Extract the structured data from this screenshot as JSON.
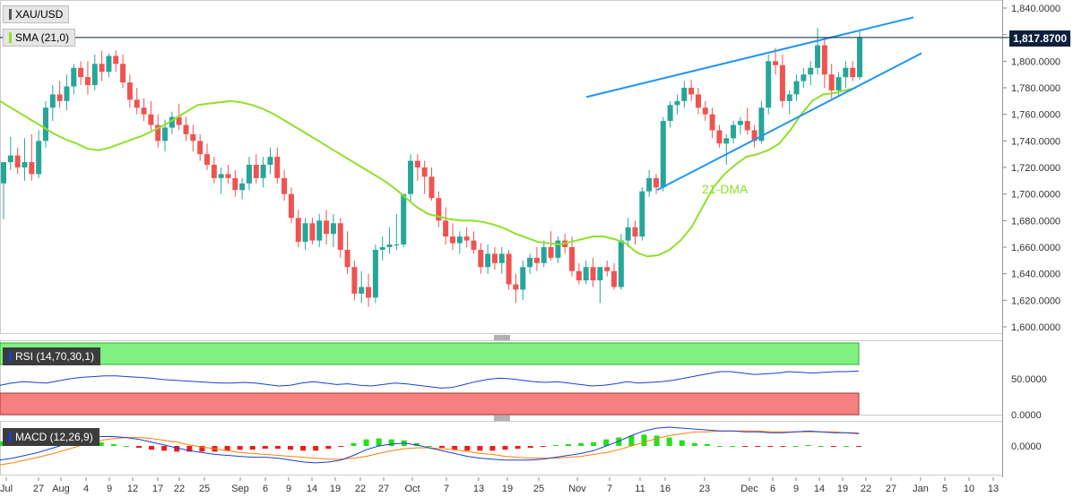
{
  "panel_labels": {
    "symbol": "XAU/USD",
    "sma": "SMA (21,0)",
    "rsi": "RSI (14,70,30,1)",
    "macd": "MACD (12,26,9)",
    "annotation": "21-DMA",
    "last_price": "1,817.8700"
  },
  "colors": {
    "bull": "#26a69a",
    "bear": "#ef5350",
    "sma": "#8fe12a",
    "trend": "#2196f3",
    "rsi_line": "#1a3fd4",
    "macd_line": "#1a3fd4",
    "signal_line": "#ff7f00",
    "hist_pos": "#22e01d",
    "hist_neg": "#ef1b1b",
    "rsi_upper_band": "#80f080",
    "rsi_lower_band": "#f58080"
  },
  "x_axis_ticks": [
    "Jul",
    "27",
    "Aug",
    "4",
    "9",
    "12",
    "17",
    "22",
    "25",
    "Sep",
    "6",
    "9",
    "14",
    "19",
    "22",
    "27",
    "Oct",
    "7",
    "13",
    "19",
    "25",
    "Nov",
    "7",
    "11",
    "16",
    "23",
    "Dec",
    "6",
    "9",
    "14",
    "19",
    "22",
    "27",
    "Jan",
    "5",
    "10",
    "13"
  ],
  "chart_data": [
    {
      "type": "candlestick",
      "ylim": [
        1590,
        1845
      ],
      "yticks": [
        "1,600.0000",
        "1,620.0000",
        "1,640.0000",
        "1,660.0000",
        "1,680.0000",
        "1,700.0000",
        "1,720.0000",
        "1,740.0000",
        "1,760.0000",
        "1,780.0000",
        "1,800.0000",
        "1,820.0000",
        "1,840.0000"
      ],
      "last_price": 1817.87,
      "candles": [
        {
          "o": 1708,
          "h": 1722,
          "l": 1681,
          "c": 1724
        },
        {
          "o": 1724,
          "h": 1743,
          "l": 1718,
          "c": 1729
        },
        {
          "o": 1729,
          "h": 1735,
          "l": 1715,
          "c": 1720
        },
        {
          "o": 1720,
          "h": 1742,
          "l": 1710,
          "c": 1724
        },
        {
          "o": 1724,
          "h": 1745,
          "l": 1710,
          "c": 1715
        },
        {
          "o": 1715,
          "h": 1748,
          "l": 1712,
          "c": 1740
        },
        {
          "o": 1740,
          "h": 1770,
          "l": 1735,
          "c": 1765
        },
        {
          "o": 1765,
          "h": 1782,
          "l": 1755,
          "c": 1775
        },
        {
          "o": 1775,
          "h": 1785,
          "l": 1765,
          "c": 1770
        },
        {
          "o": 1770,
          "h": 1790,
          "l": 1763,
          "c": 1781
        },
        {
          "o": 1781,
          "h": 1798,
          "l": 1775,
          "c": 1795
        },
        {
          "o": 1795,
          "h": 1800,
          "l": 1782,
          "c": 1788
        },
        {
          "o": 1788,
          "h": 1800,
          "l": 1775,
          "c": 1782
        },
        {
          "o": 1782,
          "h": 1805,
          "l": 1778,
          "c": 1798
        },
        {
          "o": 1798,
          "h": 1808,
          "l": 1785,
          "c": 1792
        },
        {
          "o": 1792,
          "h": 1806,
          "l": 1788,
          "c": 1804
        },
        {
          "o": 1804,
          "h": 1808,
          "l": 1792,
          "c": 1798
        },
        {
          "o": 1798,
          "h": 1805,
          "l": 1780,
          "c": 1784
        },
        {
          "o": 1784,
          "h": 1790,
          "l": 1765,
          "c": 1771
        },
        {
          "o": 1771,
          "h": 1780,
          "l": 1760,
          "c": 1765
        },
        {
          "o": 1765,
          "h": 1772,
          "l": 1755,
          "c": 1760
        },
        {
          "o": 1760,
          "h": 1770,
          "l": 1748,
          "c": 1752
        },
        {
          "o": 1752,
          "h": 1760,
          "l": 1735,
          "c": 1740
        },
        {
          "o": 1740,
          "h": 1756,
          "l": 1732,
          "c": 1750
        },
        {
          "o": 1750,
          "h": 1762,
          "l": 1745,
          "c": 1758
        },
        {
          "o": 1758,
          "h": 1768,
          "l": 1748,
          "c": 1752
        },
        {
          "o": 1752,
          "h": 1758,
          "l": 1740,
          "c": 1745
        },
        {
          "o": 1745,
          "h": 1752,
          "l": 1732,
          "c": 1740
        },
        {
          "o": 1740,
          "h": 1745,
          "l": 1725,
          "c": 1730
        },
        {
          "o": 1730,
          "h": 1738,
          "l": 1718,
          "c": 1722
        },
        {
          "o": 1722,
          "h": 1728,
          "l": 1708,
          "c": 1712
        },
        {
          "o": 1712,
          "h": 1720,
          "l": 1700,
          "c": 1715
        },
        {
          "o": 1715,
          "h": 1722,
          "l": 1708,
          "c": 1712
        },
        {
          "o": 1712,
          "h": 1718,
          "l": 1698,
          "c": 1703
        },
        {
          "o": 1703,
          "h": 1712,
          "l": 1696,
          "c": 1708
        },
        {
          "o": 1708,
          "h": 1728,
          "l": 1703,
          "c": 1722
        },
        {
          "o": 1722,
          "h": 1730,
          "l": 1708,
          "c": 1712
        },
        {
          "o": 1712,
          "h": 1728,
          "l": 1705,
          "c": 1722
        },
        {
          "o": 1722,
          "h": 1735,
          "l": 1715,
          "c": 1728
        },
        {
          "o": 1728,
          "h": 1735,
          "l": 1708,
          "c": 1712
        },
        {
          "o": 1712,
          "h": 1718,
          "l": 1695,
          "c": 1700
        },
        {
          "o": 1700,
          "h": 1705,
          "l": 1678,
          "c": 1682
        },
        {
          "o": 1682,
          "h": 1688,
          "l": 1660,
          "c": 1664
        },
        {
          "o": 1664,
          "h": 1682,
          "l": 1658,
          "c": 1678
        },
        {
          "o": 1678,
          "h": 1682,
          "l": 1662,
          "c": 1665
        },
        {
          "o": 1665,
          "h": 1685,
          "l": 1660,
          "c": 1680
        },
        {
          "o": 1680,
          "h": 1688,
          "l": 1662,
          "c": 1670
        },
        {
          "o": 1670,
          "h": 1685,
          "l": 1660,
          "c": 1678
        },
        {
          "o": 1678,
          "h": 1682,
          "l": 1652,
          "c": 1658
        },
        {
          "o": 1658,
          "h": 1672,
          "l": 1640,
          "c": 1645
        },
        {
          "o": 1645,
          "h": 1650,
          "l": 1620,
          "c": 1625
        },
        {
          "o": 1625,
          "h": 1642,
          "l": 1618,
          "c": 1630
        },
        {
          "o": 1630,
          "h": 1640,
          "l": 1615,
          "c": 1622
        },
        {
          "o": 1622,
          "h": 1662,
          "l": 1618,
          "c": 1658
        },
        {
          "o": 1658,
          "h": 1668,
          "l": 1650,
          "c": 1660
        },
        {
          "o": 1660,
          "h": 1675,
          "l": 1655,
          "c": 1662
        },
        {
          "o": 1662,
          "h": 1685,
          "l": 1658,
          "c": 1662
        },
        {
          "o": 1662,
          "h": 1700,
          "l": 1660,
          "c": 1700
        },
        {
          "o": 1700,
          "h": 1730,
          "l": 1695,
          "c": 1725
        },
        {
          "o": 1725,
          "h": 1730,
          "l": 1710,
          "c": 1720
        },
        {
          "o": 1720,
          "h": 1725,
          "l": 1700,
          "c": 1713
        },
        {
          "o": 1713,
          "h": 1720,
          "l": 1695,
          "c": 1697
        },
        {
          "o": 1697,
          "h": 1702,
          "l": 1675,
          "c": 1680
        },
        {
          "o": 1680,
          "h": 1690,
          "l": 1662,
          "c": 1668
        },
        {
          "o": 1668,
          "h": 1678,
          "l": 1658,
          "c": 1663
        },
        {
          "o": 1663,
          "h": 1672,
          "l": 1655,
          "c": 1668
        },
        {
          "o": 1668,
          "h": 1675,
          "l": 1660,
          "c": 1665
        },
        {
          "o": 1665,
          "h": 1672,
          "l": 1655,
          "c": 1658
        },
        {
          "o": 1658,
          "h": 1663,
          "l": 1640,
          "c": 1645
        },
        {
          "o": 1645,
          "h": 1662,
          "l": 1640,
          "c": 1655
        },
        {
          "o": 1655,
          "h": 1660,
          "l": 1643,
          "c": 1648
        },
        {
          "o": 1648,
          "h": 1660,
          "l": 1640,
          "c": 1655
        },
        {
          "o": 1655,
          "h": 1658,
          "l": 1628,
          "c": 1632
        },
        {
          "o": 1632,
          "h": 1640,
          "l": 1618,
          "c": 1628
        },
        {
          "o": 1628,
          "h": 1650,
          "l": 1620,
          "c": 1645
        },
        {
          "o": 1645,
          "h": 1655,
          "l": 1640,
          "c": 1652
        },
        {
          "o": 1652,
          "h": 1660,
          "l": 1642,
          "c": 1648
        },
        {
          "o": 1648,
          "h": 1665,
          "l": 1645,
          "c": 1660
        },
        {
          "o": 1660,
          "h": 1672,
          "l": 1650,
          "c": 1652
        },
        {
          "o": 1652,
          "h": 1668,
          "l": 1648,
          "c": 1665
        },
        {
          "o": 1665,
          "h": 1670,
          "l": 1655,
          "c": 1660
        },
        {
          "o": 1660,
          "h": 1668,
          "l": 1638,
          "c": 1642
        },
        {
          "o": 1642,
          "h": 1648,
          "l": 1632,
          "c": 1635
        },
        {
          "o": 1635,
          "h": 1650,
          "l": 1632,
          "c": 1645
        },
        {
          "o": 1645,
          "h": 1652,
          "l": 1630,
          "c": 1635
        },
        {
          "o": 1635,
          "h": 1645,
          "l": 1618,
          "c": 1645
        },
        {
          "o": 1645,
          "h": 1650,
          "l": 1638,
          "c": 1642
        },
        {
          "o": 1642,
          "h": 1648,
          "l": 1628,
          "c": 1630
        },
        {
          "o": 1630,
          "h": 1670,
          "l": 1628,
          "c": 1665
        },
        {
          "o": 1665,
          "h": 1682,
          "l": 1660,
          "c": 1675
        },
        {
          "o": 1675,
          "h": 1680,
          "l": 1662,
          "c": 1668
        },
        {
          "o": 1668,
          "h": 1705,
          "l": 1665,
          "c": 1702
        },
        {
          "o": 1702,
          "h": 1718,
          "l": 1698,
          "c": 1712
        },
        {
          "o": 1712,
          "h": 1715,
          "l": 1700,
          "c": 1705
        },
        {
          "o": 1705,
          "h": 1758,
          "l": 1702,
          "c": 1755
        },
        {
          "o": 1755,
          "h": 1770,
          "l": 1750,
          "c": 1767
        },
        {
          "o": 1767,
          "h": 1775,
          "l": 1760,
          "c": 1770
        },
        {
          "o": 1770,
          "h": 1785,
          "l": 1765,
          "c": 1780
        },
        {
          "o": 1780,
          "h": 1786,
          "l": 1770,
          "c": 1775
        },
        {
          "o": 1775,
          "h": 1780,
          "l": 1760,
          "c": 1765
        },
        {
          "o": 1765,
          "h": 1770,
          "l": 1755,
          "c": 1760
        },
        {
          "o": 1760,
          "h": 1765,
          "l": 1742,
          "c": 1748
        },
        {
          "o": 1748,
          "h": 1752,
          "l": 1735,
          "c": 1738
        },
        {
          "o": 1738,
          "h": 1745,
          "l": 1722,
          "c": 1742
        },
        {
          "o": 1742,
          "h": 1755,
          "l": 1738,
          "c": 1752
        },
        {
          "o": 1752,
          "h": 1758,
          "l": 1745,
          "c": 1755
        },
        {
          "o": 1755,
          "h": 1765,
          "l": 1745,
          "c": 1748
        },
        {
          "o": 1748,
          "h": 1752,
          "l": 1735,
          "c": 1740
        },
        {
          "o": 1740,
          "h": 1770,
          "l": 1738,
          "c": 1765
        },
        {
          "o": 1765,
          "h": 1805,
          "l": 1760,
          "c": 1800
        },
        {
          "o": 1800,
          "h": 1810,
          "l": 1790,
          "c": 1797
        },
        {
          "o": 1797,
          "h": 1805,
          "l": 1765,
          "c": 1770
        },
        {
          "o": 1770,
          "h": 1778,
          "l": 1760,
          "c": 1775
        },
        {
          "o": 1775,
          "h": 1790,
          "l": 1770,
          "c": 1785
        },
        {
          "o": 1785,
          "h": 1795,
          "l": 1780,
          "c": 1790
        },
        {
          "o": 1790,
          "h": 1800,
          "l": 1782,
          "c": 1795
        },
        {
          "o": 1795,
          "h": 1825,
          "l": 1790,
          "c": 1812
        },
        {
          "o": 1812,
          "h": 1818,
          "l": 1780,
          "c": 1790
        },
        {
          "o": 1790,
          "h": 1798,
          "l": 1772,
          "c": 1778
        },
        {
          "o": 1778,
          "h": 1792,
          "l": 1773,
          "c": 1788
        },
        {
          "o": 1788,
          "h": 1800,
          "l": 1780,
          "c": 1795
        },
        {
          "o": 1795,
          "h": 1800,
          "l": 1785,
          "c": 1788
        },
        {
          "o": 1788,
          "h": 1823,
          "l": 1786,
          "c": 1818
        }
      ],
      "sma21": [
        1770,
        1765,
        1760,
        1755,
        1750,
        1745,
        1741,
        1738,
        1734,
        1733,
        1735,
        1738,
        1741,
        1744,
        1748,
        1752,
        1757,
        1762,
        1767,
        1768,
        1769,
        1770,
        1769,
        1767,
        1764,
        1760,
        1755,
        1750,
        1745,
        1740,
        1735,
        1730,
        1725,
        1720,
        1715,
        1710,
        1704,
        1697,
        1690,
        1685,
        1683,
        1681,
        1680,
        1680,
        1679,
        1677,
        1674,
        1670,
        1667,
        1664,
        1663,
        1662,
        1664,
        1666,
        1668,
        1668,
        1666,
        1663,
        1656,
        1653,
        1654,
        1658,
        1665,
        1675,
        1690,
        1705,
        1715,
        1722,
        1728,
        1730,
        1733,
        1738,
        1748,
        1760,
        1770,
        1775,
        1776,
        1778,
        1780
      ],
      "trendlines": [
        {
          "from": [
            "2021-11-01",
            1773
          ],
          "to": [
            "2021-12-28",
            1833
          ]
        },
        {
          "from": [
            "2021-11-16",
            1703
          ],
          "to": [
            "2021-12-29",
            1806
          ]
        }
      ]
    },
    {
      "type": "line",
      "name": "RSI",
      "ylim": [
        0,
        100
      ],
      "yticks": [
        "0.0000",
        "50.0000"
      ],
      "upper": 70,
      "lower": 30,
      "values": [
        41,
        44,
        46,
        45,
        44,
        47,
        50,
        52,
        53,
        54,
        54,
        53,
        52,
        51,
        49,
        48,
        47,
        46,
        45,
        44,
        44,
        45,
        44,
        42,
        40,
        41,
        44,
        46,
        44,
        42,
        43,
        41,
        40,
        42,
        44,
        43,
        41,
        39,
        37,
        38,
        42,
        46,
        49,
        51,
        50,
        48,
        46,
        45,
        46,
        44,
        42,
        40,
        41,
        43,
        46,
        44,
        45,
        46,
        48,
        51,
        54,
        57,
        60,
        60,
        58,
        56,
        57,
        58,
        60,
        59,
        58,
        59,
        60,
        60,
        61
      ]
    },
    {
      "type": "macd",
      "name": "MACD",
      "yticks": [
        "0.0000"
      ],
      "macd": [
        -15,
        -13,
        -10,
        -7,
        -3,
        1,
        5,
        8,
        10,
        10,
        9,
        7,
        4,
        1,
        -2,
        -5,
        -7,
        -9,
        -10,
        -11,
        -12,
        -12,
        -13,
        -15,
        -17,
        -18,
        -17,
        -15,
        -10,
        -4,
        0,
        2,
        3,
        1,
        -2,
        -5,
        -8,
        -11,
        -13,
        -14,
        -15,
        -15,
        -15,
        -14,
        -12,
        -10,
        -8,
        -5,
        0,
        5,
        11,
        16,
        19,
        20,
        19,
        18,
        17,
        16,
        16,
        15,
        15,
        14,
        14,
        15,
        16,
        15,
        14,
        14,
        13
      ],
      "signal": [
        -20,
        -18,
        -15,
        -12,
        -9,
        -5,
        -1,
        3,
        6,
        8,
        9,
        9,
        8,
        6,
        4,
        1,
        -1,
        -3,
        -5,
        -7,
        -8,
        -9,
        -10,
        -11,
        -12,
        -13,
        -14,
        -14,
        -13,
        -11,
        -8,
        -5,
        -3,
        -2,
        -2,
        -3,
        -4,
        -6,
        -8,
        -9,
        -11,
        -12,
        -13,
        -13,
        -13,
        -12,
        -11,
        -9,
        -7,
        -4,
        0,
        4,
        8,
        11,
        13,
        15,
        15,
        16,
        16,
        16,
        16,
        15,
        15,
        15,
        15,
        15,
        15,
        14,
        14
      ]
    }
  ]
}
